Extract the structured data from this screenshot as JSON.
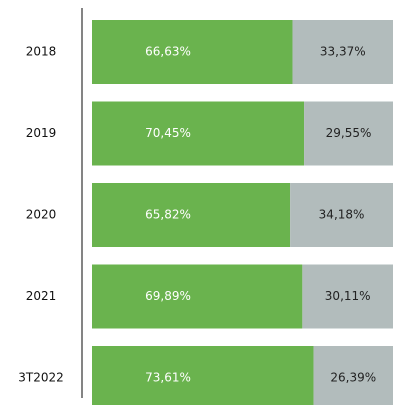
{
  "chart_data": {
    "type": "stacked-bar",
    "orientation": "horizontal",
    "categories": [
      "2018",
      "2019",
      "2020",
      "2021",
      "3T2022"
    ],
    "series": [
      {
        "color": "#6ab34e",
        "values": [
          66.63,
          70.45,
          65.82,
          69.89,
          73.61
        ],
        "value_labels": [
          "66,63%",
          "70,45%",
          "65,82%",
          "69,89%",
          "73,61%"
        ]
      },
      {
        "color": "#b2bcbc",
        "values": [
          33.37,
          29.55,
          34.18,
          30.11,
          26.39
        ],
        "value_labels": [
          "33,37%",
          "29,55%",
          "34,18%",
          "30,11%",
          "26,39%"
        ]
      }
    ]
  }
}
